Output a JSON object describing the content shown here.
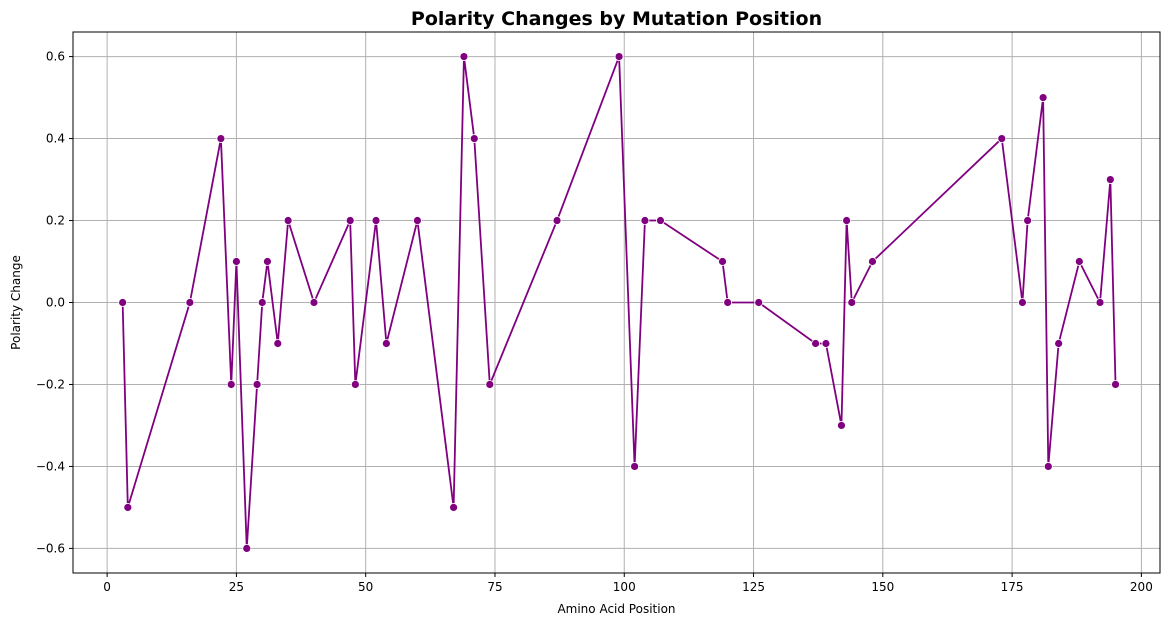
{
  "chart_data": {
    "type": "line",
    "title": "Polarity Changes by Mutation Position",
    "xlabel": "Amino Acid Position",
    "ylabel": "Polarity Change",
    "xlim": [
      -6.6,
      203.6
    ],
    "ylim": [
      -0.66,
      0.66
    ],
    "xticks": [
      0,
      25,
      50,
      75,
      100,
      125,
      150,
      175,
      200
    ],
    "yticks": [
      -0.6,
      -0.4,
      -0.2,
      0.0,
      0.2,
      0.4,
      0.6
    ],
    "grid": true,
    "line_color": "#800080",
    "series": [
      {
        "x": [
          3,
          4,
          16,
          22,
          24,
          25,
          27,
          29,
          30,
          31,
          33,
          35,
          40,
          47,
          48,
          52,
          54,
          60,
          67,
          69,
          71,
          74,
          87,
          99,
          102,
          104,
          107,
          119,
          120,
          126,
          137,
          139,
          142,
          143,
          144,
          148,
          173,
          177,
          178,
          181,
          182,
          184,
          188,
          192,
          194,
          195
        ],
        "y": [
          0.0,
          -0.5,
          0.0,
          0.4,
          -0.2,
          0.1,
          -0.6,
          -0.2,
          0.0,
          0.1,
          -0.1,
          0.2,
          0.0,
          0.2,
          -0.2,
          0.2,
          -0.1,
          0.2,
          -0.5,
          0.6,
          0.4,
          -0.2,
          0.2,
          0.6,
          -0.4,
          0.2,
          0.2,
          0.1,
          0.0,
          0.0,
          -0.1,
          -0.1,
          -0.3,
          0.2,
          0.0,
          0.1,
          0.4,
          0.0,
          0.2,
          0.5,
          -0.4,
          -0.1,
          0.1,
          0.0,
          0.3,
          -0.2
        ]
      }
    ]
  }
}
